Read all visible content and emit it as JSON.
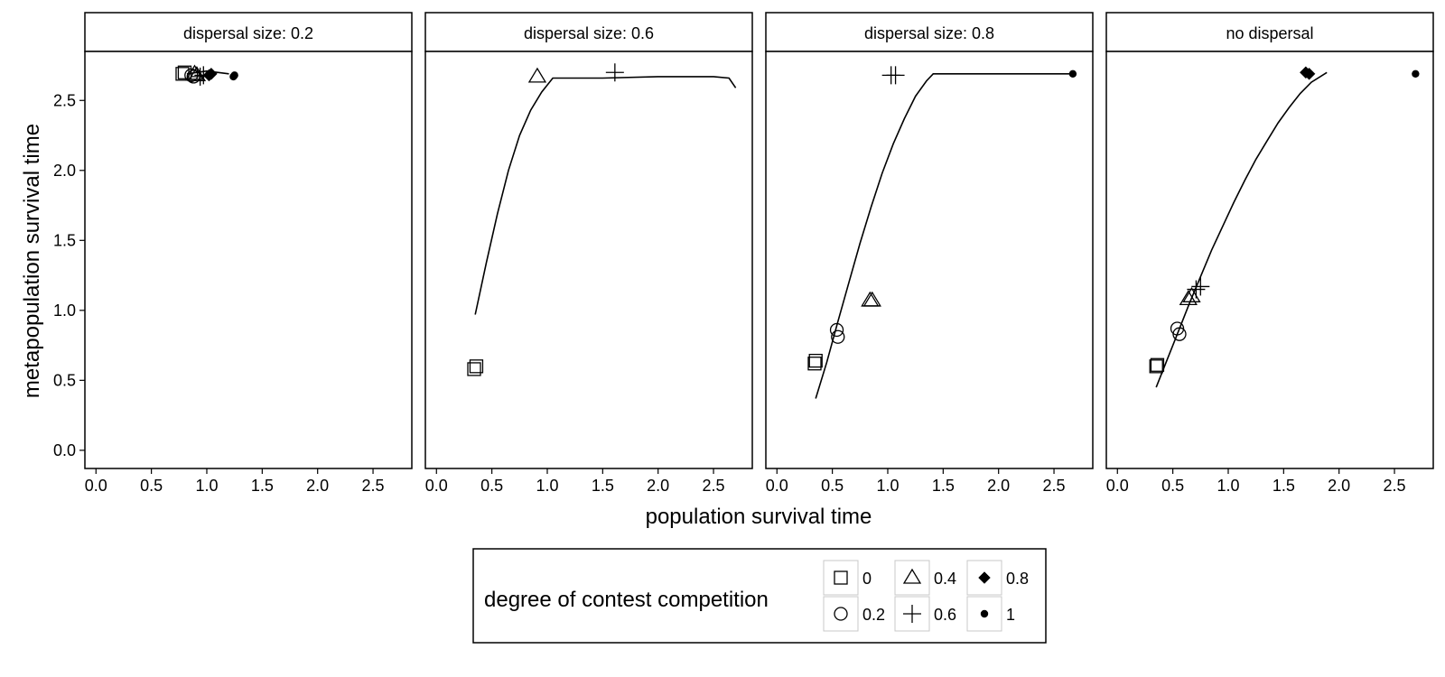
{
  "chart_data": {
    "type": "scatter",
    "xlabel": "population survival time",
    "ylabel": "metapopulation survival time",
    "xlim": [
      -0.1,
      2.85
    ],
    "ylim": [
      -0.13,
      2.85
    ],
    "x_ticks": [
      0.0,
      0.5,
      1.0,
      1.5,
      2.0,
      2.5
    ],
    "y_ticks": [
      0.0,
      0.5,
      1.0,
      1.5,
      2.0,
      2.5
    ],
    "x_tick_labels": [
      "0.0",
      "0.5",
      "1.0",
      "1.5",
      "2.0",
      "2.5"
    ],
    "y_tick_labels": [
      "0.0",
      "0.5",
      "1.0",
      "1.5",
      "2.0",
      "2.5"
    ],
    "grid": false,
    "legend": {
      "title": "degree of contest competition",
      "position": "bottom",
      "entries": [
        {
          "label": "0",
          "shape": "square-open"
        },
        {
          "label": "0.2",
          "shape": "circle-open"
        },
        {
          "label": "0.4",
          "shape": "triangle-open"
        },
        {
          "label": "0.6",
          "shape": "plus"
        },
        {
          "label": "0.8",
          "shape": "diamond-filled"
        },
        {
          "label": "1",
          "shape": "circle-filled"
        }
      ]
    },
    "panels": [
      {
        "strip": "dispersal size: 0.2",
        "points": [
          {
            "x": 0.78,
            "y": 2.69,
            "level": "0"
          },
          {
            "x": 0.8,
            "y": 2.7,
            "level": "0"
          },
          {
            "x": 0.86,
            "y": 2.68,
            "level": "0.2"
          },
          {
            "x": 0.88,
            "y": 2.67,
            "level": "0.2"
          },
          {
            "x": 0.89,
            "y": 2.69,
            "level": "0.4"
          },
          {
            "x": 0.91,
            "y": 2.68,
            "level": "0.4"
          },
          {
            "x": 0.94,
            "y": 2.67,
            "level": "0.6"
          },
          {
            "x": 0.97,
            "y": 2.68,
            "level": "0.6"
          },
          {
            "x": 1.02,
            "y": 2.68,
            "level": "0.8"
          },
          {
            "x": 1.04,
            "y": 2.69,
            "level": "0.8"
          },
          {
            "x": 1.24,
            "y": 2.67,
            "level": "1"
          },
          {
            "x": 1.25,
            "y": 2.68,
            "level": "1"
          }
        ],
        "curve": {
          "x": [
            0.82,
            1.0,
            1.2
          ],
          "y": [
            2.69,
            2.71,
            2.69
          ]
        }
      },
      {
        "strip": "dispersal size: 0.6",
        "points": [
          {
            "x": 0.34,
            "y": 0.58,
            "level": "0"
          },
          {
            "x": 0.36,
            "y": 0.6,
            "level": "0"
          },
          {
            "x": 0.91,
            "y": 2.67,
            "level": "0.4"
          },
          {
            "x": 1.61,
            "y": 2.7,
            "level": "0.6"
          }
        ],
        "curve": {
          "x": [
            0.35,
            0.45,
            0.55,
            0.65,
            0.75,
            0.85,
            0.95,
            1.05,
            1.5,
            2.0,
            2.5,
            2.64,
            2.7
          ],
          "y": [
            0.97,
            1.34,
            1.69,
            2.0,
            2.25,
            2.43,
            2.56,
            2.66,
            2.66,
            2.67,
            2.67,
            2.66,
            2.59
          ]
        }
      },
      {
        "strip": "dispersal size: 0.8",
        "points": [
          {
            "x": 0.34,
            "y": 0.62,
            "level": "0"
          },
          {
            "x": 0.35,
            "y": 0.64,
            "level": "0"
          },
          {
            "x": 0.54,
            "y": 0.86,
            "level": "0.2"
          },
          {
            "x": 0.55,
            "y": 0.81,
            "level": "0.2"
          },
          {
            "x": 0.84,
            "y": 1.07,
            "level": "0.4"
          },
          {
            "x": 0.86,
            "y": 1.07,
            "level": "0.4"
          },
          {
            "x": 1.03,
            "y": 2.68,
            "level": "0.6"
          },
          {
            "x": 1.07,
            "y": 2.68,
            "level": "0.6"
          },
          {
            "x": 2.67,
            "y": 2.69,
            "level": "1"
          }
        ],
        "curve": {
          "x": [
            0.35,
            0.45,
            0.55,
            0.65,
            0.75,
            0.85,
            0.95,
            1.05,
            1.15,
            1.25,
            1.35,
            1.41,
            1.8,
            2.2,
            2.67
          ],
          "y": [
            0.37,
            0.63,
            0.92,
            1.2,
            1.48,
            1.74,
            1.98,
            2.19,
            2.37,
            2.53,
            2.64,
            2.69,
            2.69,
            2.69,
            2.69
          ]
        }
      },
      {
        "strip": "no dispersal",
        "points": [
          {
            "x": 0.35,
            "y": 0.6,
            "level": "0"
          },
          {
            "x": 0.36,
            "y": 0.61,
            "level": "0"
          },
          {
            "x": 0.54,
            "y": 0.87,
            "level": "0.2"
          },
          {
            "x": 0.56,
            "y": 0.83,
            "level": "0.2"
          },
          {
            "x": 0.64,
            "y": 1.08,
            "level": "0.4"
          },
          {
            "x": 0.67,
            "y": 1.1,
            "level": "0.4"
          },
          {
            "x": 0.71,
            "y": 1.15,
            "level": "0.6"
          },
          {
            "x": 0.75,
            "y": 1.17,
            "level": "0.6"
          },
          {
            "x": 1.7,
            "y": 2.7,
            "level": "0.8"
          },
          {
            "x": 1.73,
            "y": 2.69,
            "level": "0.8"
          },
          {
            "x": 2.69,
            "y": 2.69,
            "level": "1"
          }
        ],
        "curve": {
          "x": [
            0.35,
            0.45,
            0.55,
            0.65,
            0.75,
            0.85,
            0.95,
            1.05,
            1.15,
            1.25,
            1.35,
            1.45,
            1.55,
            1.65,
            1.75,
            1.89
          ],
          "y": [
            0.45,
            0.65,
            0.85,
            1.05,
            1.24,
            1.43,
            1.6,
            1.77,
            1.93,
            2.08,
            2.21,
            2.34,
            2.45,
            2.55,
            2.63,
            2.7
          ]
        }
      }
    ]
  }
}
